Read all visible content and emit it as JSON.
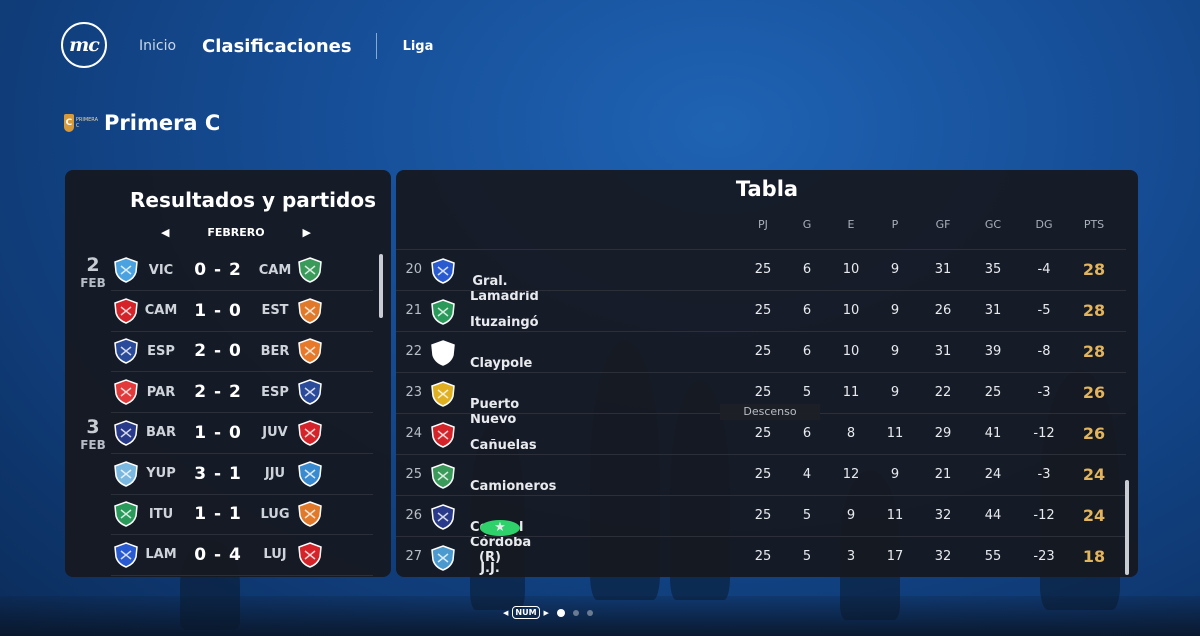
{
  "header": {
    "logo": "mc",
    "nav": {
      "inicio": "Inicio",
      "clasificaciones": "Clasificaciones",
      "liga": "Liga"
    }
  },
  "league": {
    "badge_text": "C",
    "badge_small": "PRIMERA C",
    "title": "Primera C"
  },
  "results": {
    "title": "Resultados y partidos",
    "month": "FEBRERO",
    "dates": [
      {
        "day": "2",
        "month": "FEB"
      },
      {
        "day": "3",
        "month": "FEB"
      }
    ],
    "matches": [
      {
        "home": "VIC",
        "score": "0 - 2",
        "away": "CAM",
        "home_color": "#4aa3e0",
        "away_color": "#3a9a5a"
      },
      {
        "home": "CAM",
        "score": "1 - 0",
        "away": "EST",
        "home_color": "#d4242a",
        "away_color": "#e07a2a"
      },
      {
        "home": "ESP",
        "score": "2 - 0",
        "away": "BER",
        "home_color": "#2a4a9a",
        "away_color": "#e67a2a"
      },
      {
        "home": "PAR",
        "score": "2 - 2",
        "away": "ESP",
        "home_color": "#e23a3a",
        "away_color": "#2a4a9a"
      },
      {
        "home": "BAR",
        "score": "1 - 0",
        "away": "JUV",
        "home_color": "#2a3a8a",
        "away_color": "#d4242a"
      },
      {
        "home": "YUP",
        "score": "3 - 1",
        "away": "JJU",
        "home_color": "#7ab8e0",
        "away_color": "#3a8ad0"
      },
      {
        "home": "ITU",
        "score": "1 - 1",
        "away": "LUG",
        "home_color": "#2a9a5a",
        "away_color": "#e07a2a"
      },
      {
        "home": "LAM",
        "score": "0 - 4",
        "away": "LUJ",
        "home_color": "#2a5ad0",
        "away_color": "#d4242a"
      }
    ]
  },
  "table": {
    "title": "Tabla",
    "headers": [
      "PJ",
      "G",
      "E",
      "P",
      "GF",
      "GC",
      "DG",
      "PTS"
    ],
    "zone_label": "Descenso",
    "rows": [
      {
        "pos": "20",
        "team": "Gral. Lamadrid",
        "pj": "25",
        "g": "6",
        "e": "10",
        "p": "9",
        "gf": "31",
        "gc": "35",
        "dg": "-4",
        "pts": "28",
        "color": "#2a5ad0",
        "star": false
      },
      {
        "pos": "21",
        "team": "Ituzaingó",
        "pj": "25",
        "g": "6",
        "e": "10",
        "p": "9",
        "gf": "26",
        "gc": "31",
        "dg": "-5",
        "pts": "28",
        "color": "#2a9a5a",
        "star": false
      },
      {
        "pos": "22",
        "team": "Claypole",
        "pj": "25",
        "g": "6",
        "e": "10",
        "p": "9",
        "gf": "31",
        "gc": "39",
        "dg": "-8",
        "pts": "28",
        "color": "#ffffff",
        "star": false
      },
      {
        "pos": "23",
        "team": "Puerto Nuevo",
        "pj": "25",
        "g": "5",
        "e": "11",
        "p": "9",
        "gf": "22",
        "gc": "25",
        "dg": "-3",
        "pts": "26",
        "color": "#e0b020",
        "star": false
      },
      {
        "pos": "24",
        "team": "Cañuelas",
        "pj": "25",
        "g": "6",
        "e": "8",
        "p": "11",
        "gf": "29",
        "gc": "41",
        "dg": "-12",
        "pts": "26",
        "color": "#d4242a",
        "star": false
      },
      {
        "pos": "25",
        "team": "Camioneros",
        "pj": "25",
        "g": "4",
        "e": "12",
        "p": "9",
        "gf": "21",
        "gc": "24",
        "dg": "-3",
        "pts": "24",
        "color": "#3a9a5a",
        "star": false
      },
      {
        "pos": "26",
        "team": "Central Córdoba (R)",
        "pj": "25",
        "g": "5",
        "e": "9",
        "p": "11",
        "gf": "32",
        "gc": "44",
        "dg": "-12",
        "pts": "24",
        "color": "#2a3a8a",
        "star": true
      },
      {
        "pos": "27",
        "team": "J.J. de Urquiza",
        "pj": "25",
        "g": "5",
        "e": "3",
        "p": "17",
        "gf": "32",
        "gc": "55",
        "dg": "-23",
        "pts": "18",
        "color": "#4a9ad0",
        "star": false
      }
    ]
  },
  "pager": {
    "label": "NUM",
    "active_color": "#ffffff",
    "inactive_color": "#6a7a90"
  }
}
